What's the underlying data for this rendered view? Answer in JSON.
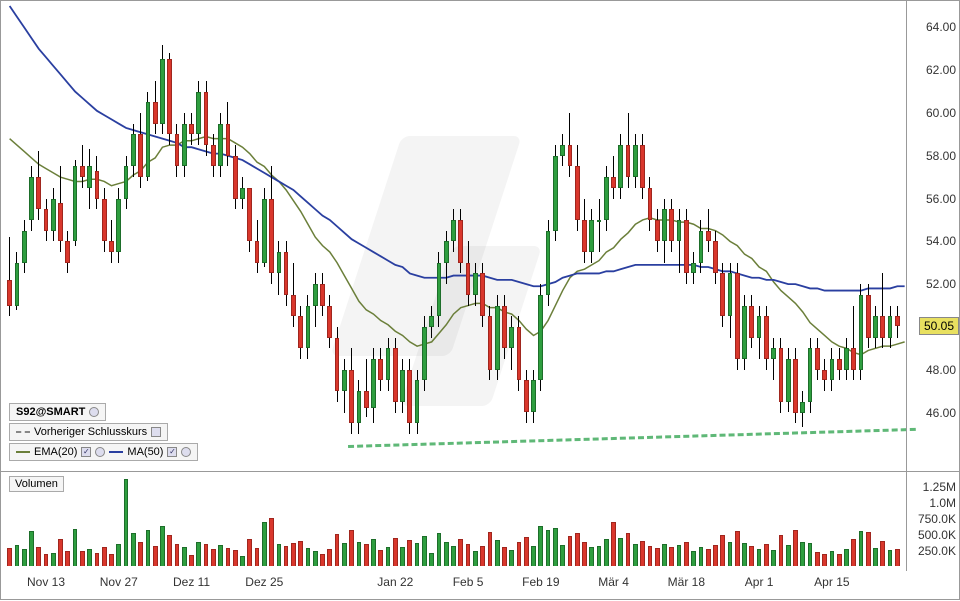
{
  "chart": {
    "type": "candlestick",
    "ticker": "S92@SMART",
    "price_panel": {
      "ylim": [
        43.5,
        65.0
      ],
      "yticks": [
        46,
        48,
        50,
        52,
        54,
        56,
        58,
        60,
        62,
        64
      ],
      "ytick_labels": [
        "46.00",
        "48.00",
        "50.00",
        "52.00",
        "54.00",
        "56.00",
        "58.00",
        "60.00",
        "62.00",
        "64.00"
      ]
    },
    "current_price_label": "50.05",
    "current_price_value": 50.05,
    "volume_panel": {
      "ymax": 1400000,
      "yticks": [
        250000,
        500000,
        750000,
        1000000,
        1250000
      ],
      "ytick_labels": [
        "250.0K",
        "500.0K",
        "750.0K",
        "1.0M",
        "1.25M"
      ]
    },
    "colors": {
      "up_fill": "#2e9e3f",
      "up_border": "#1d6e2a",
      "down_fill": "#d9372c",
      "down_border": "#a0261e",
      "wick": "#000000",
      "ema20": "#6b7f3a",
      "ma50": "#2a3fa0",
      "support": "#5fb877",
      "bg": "#ffffff",
      "axis": "#999999",
      "text": "#333333",
      "price_tag_bg": "#e8e060"
    },
    "legend": {
      "ticker_label": "S92@SMART",
      "prev_close_label": "Vorheriger Schlusskurs",
      "ema_label": "EMA(20)",
      "ma_label": "MA(50)",
      "volume_label": "Volumen"
    },
    "support_line": {
      "x0_idx": 47,
      "y0": 44.5,
      "x1_idx": 125,
      "y1": 45.3
    },
    "xaxis_labels": [
      {
        "idx": 5,
        "text": "Nov 13"
      },
      {
        "idx": 15,
        "text": "Nov 27"
      },
      {
        "idx": 25,
        "text": "Dez 11"
      },
      {
        "idx": 35,
        "text": "Dez 25"
      },
      {
        "idx": 53,
        "text": "Jan 22"
      },
      {
        "idx": 63,
        "text": "Feb 5"
      },
      {
        "idx": 73,
        "text": "Feb 19"
      },
      {
        "idx": 83,
        "text": "Mär 4"
      },
      {
        "idx": 93,
        "text": "Mär 18"
      },
      {
        "idx": 103,
        "text": "Apr 1"
      },
      {
        "idx": 113,
        "text": "Apr 15"
      }
    ],
    "candles": [
      {
        "o": 52.2,
        "h": 54.2,
        "l": 50.5,
        "c": 51.0,
        "v": 280000
      },
      {
        "o": 51.0,
        "h": 53.5,
        "l": 50.8,
        "c": 53.0,
        "v": 320000
      },
      {
        "o": 53.0,
        "h": 55.0,
        "l": 52.5,
        "c": 54.5,
        "v": 260000
      },
      {
        "o": 55.0,
        "h": 57.5,
        "l": 54.5,
        "c": 57.0,
        "v": 550000
      },
      {
        "o": 57.0,
        "h": 58.2,
        "l": 55.0,
        "c": 55.5,
        "v": 300000
      },
      {
        "o": 55.5,
        "h": 56.0,
        "l": 54.0,
        "c": 54.5,
        "v": 180000
      },
      {
        "o": 54.5,
        "h": 56.5,
        "l": 54.0,
        "c": 56.0,
        "v": 200000
      },
      {
        "o": 55.8,
        "h": 57.5,
        "l": 53.5,
        "c": 54.0,
        "v": 420000
      },
      {
        "o": 54.0,
        "h": 54.5,
        "l": 52.5,
        "c": 53.0,
        "v": 230000
      },
      {
        "o": 54.0,
        "h": 57.8,
        "l": 53.8,
        "c": 57.5,
        "v": 580000
      },
      {
        "o": 57.5,
        "h": 58.5,
        "l": 56.5,
        "c": 57.0,
        "v": 240000
      },
      {
        "o": 56.5,
        "h": 58.3,
        "l": 55.5,
        "c": 57.5,
        "v": 260000
      },
      {
        "o": 57.3,
        "h": 58.0,
        "l": 55.5,
        "c": 56.0,
        "v": 210000
      },
      {
        "o": 56.0,
        "h": 56.5,
        "l": 53.5,
        "c": 54.0,
        "v": 290000
      },
      {
        "o": 54.0,
        "h": 55.0,
        "l": 53.0,
        "c": 53.5,
        "v": 180000
      },
      {
        "o": 53.5,
        "h": 56.5,
        "l": 53.0,
        "c": 56.0,
        "v": 340000
      },
      {
        "o": 56.0,
        "h": 58.0,
        "l": 55.5,
        "c": 57.5,
        "v": 1350000
      },
      {
        "o": 57.5,
        "h": 59.5,
        "l": 57.0,
        "c": 59.0,
        "v": 520000
      },
      {
        "o": 59.0,
        "h": 60.0,
        "l": 56.5,
        "c": 57.0,
        "v": 380000
      },
      {
        "o": 57.0,
        "h": 61.0,
        "l": 56.8,
        "c": 60.5,
        "v": 560000
      },
      {
        "o": 60.5,
        "h": 61.5,
        "l": 59.0,
        "c": 59.5,
        "v": 310000
      },
      {
        "o": 59.5,
        "h": 63.2,
        "l": 59.0,
        "c": 62.5,
        "v": 620000
      },
      {
        "o": 62.5,
        "h": 62.8,
        "l": 58.5,
        "c": 59.0,
        "v": 480000
      },
      {
        "o": 59.0,
        "h": 59.5,
        "l": 57.0,
        "c": 57.5,
        "v": 350000
      },
      {
        "o": 57.5,
        "h": 60.0,
        "l": 57.0,
        "c": 59.5,
        "v": 290000
      },
      {
        "o": 59.5,
        "h": 60.0,
        "l": 58.5,
        "c": 59.0,
        "v": 170000
      },
      {
        "o": 59.0,
        "h": 61.5,
        "l": 58.5,
        "c": 61.0,
        "v": 380000
      },
      {
        "o": 61.0,
        "h": 61.5,
        "l": 58.0,
        "c": 58.5,
        "v": 340000
      },
      {
        "o": 58.5,
        "h": 59.0,
        "l": 57.0,
        "c": 57.5,
        "v": 260000
      },
      {
        "o": 57.5,
        "h": 60.0,
        "l": 57.0,
        "c": 59.5,
        "v": 320000
      },
      {
        "o": 59.5,
        "h": 60.5,
        "l": 57.5,
        "c": 58.0,
        "v": 280000
      },
      {
        "o": 58.0,
        "h": 58.5,
        "l": 55.5,
        "c": 56.0,
        "v": 250000
      },
      {
        "o": 56.0,
        "h": 57.0,
        "l": 55.5,
        "c": 56.5,
        "v": 160000
      },
      {
        "o": 56.5,
        "h": 56.5,
        "l": 53.5,
        "c": 54.0,
        "v": 420000
      },
      {
        "o": 54.0,
        "h": 55.0,
        "l": 52.5,
        "c": 53.0,
        "v": 280000
      },
      {
        "o": 53.0,
        "h": 56.5,
        "l": 52.8,
        "c": 56.0,
        "v": 690000
      },
      {
        "o": 56.0,
        "h": 57.5,
        "l": 52.0,
        "c": 52.5,
        "v": 750000
      },
      {
        "o": 52.5,
        "h": 54.0,
        "l": 51.5,
        "c": 53.5,
        "v": 340000
      },
      {
        "o": 53.5,
        "h": 54.0,
        "l": 51.0,
        "c": 51.5,
        "v": 310000
      },
      {
        "o": 51.5,
        "h": 53.0,
        "l": 50.0,
        "c": 50.5,
        "v": 360000
      },
      {
        "o": 50.5,
        "h": 51.0,
        "l": 48.5,
        "c": 49.0,
        "v": 390000
      },
      {
        "o": 49.0,
        "h": 51.5,
        "l": 48.5,
        "c": 51.0,
        "v": 280000
      },
      {
        "o": 51.0,
        "h": 52.5,
        "l": 50.0,
        "c": 52.0,
        "v": 230000
      },
      {
        "o": 52.0,
        "h": 52.5,
        "l": 50.5,
        "c": 51.0,
        "v": 190000
      },
      {
        "o": 51.0,
        "h": 51.5,
        "l": 49.0,
        "c": 49.5,
        "v": 270000
      },
      {
        "o": 49.5,
        "h": 50.0,
        "l": 46.5,
        "c": 47.0,
        "v": 500000
      },
      {
        "o": 47.0,
        "h": 48.5,
        "l": 46.0,
        "c": 48.0,
        "v": 360000
      },
      {
        "o": 48.0,
        "h": 49.0,
        "l": 45.0,
        "c": 45.5,
        "v": 560000
      },
      {
        "o": 45.5,
        "h": 47.5,
        "l": 45.0,
        "c": 47.0,
        "v": 380000
      },
      {
        "o": 47.0,
        "h": 48.5,
        "l": 45.8,
        "c": 46.2,
        "v": 340000
      },
      {
        "o": 46.2,
        "h": 49.0,
        "l": 45.5,
        "c": 48.5,
        "v": 420000
      },
      {
        "o": 48.5,
        "h": 49.0,
        "l": 47.0,
        "c": 47.5,
        "v": 250000
      },
      {
        "o": 47.5,
        "h": 49.5,
        "l": 47.0,
        "c": 49.0,
        "v": 300000
      },
      {
        "o": 49.0,
        "h": 49.5,
        "l": 46.0,
        "c": 46.5,
        "v": 430000
      },
      {
        "o": 46.5,
        "h": 48.5,
        "l": 46.0,
        "c": 48.0,
        "v": 290000
      },
      {
        "o": 48.0,
        "h": 48.5,
        "l": 45.0,
        "c": 45.5,
        "v": 410000
      },
      {
        "o": 45.5,
        "h": 48.0,
        "l": 45.0,
        "c": 47.5,
        "v": 360000
      },
      {
        "o": 47.5,
        "h": 50.5,
        "l": 47.0,
        "c": 50.0,
        "v": 460000
      },
      {
        "o": 50.0,
        "h": 51.0,
        "l": 49.5,
        "c": 50.5,
        "v": 210000
      },
      {
        "o": 50.5,
        "h": 53.5,
        "l": 50.0,
        "c": 53.0,
        "v": 520000
      },
      {
        "o": 53.0,
        "h": 54.5,
        "l": 52.0,
        "c": 54.0,
        "v": 380000
      },
      {
        "o": 54.0,
        "h": 55.5,
        "l": 53.5,
        "c": 55.0,
        "v": 310000
      },
      {
        "o": 55.0,
        "h": 55.5,
        "l": 52.5,
        "c": 53.0,
        "v": 420000
      },
      {
        "o": 53.0,
        "h": 54.0,
        "l": 51.0,
        "c": 51.5,
        "v": 350000
      },
      {
        "o": 51.5,
        "h": 53.0,
        "l": 51.0,
        "c": 52.5,
        "v": 240000
      },
      {
        "o": 52.5,
        "h": 53.0,
        "l": 50.0,
        "c": 50.5,
        "v": 310000
      },
      {
        "o": 50.5,
        "h": 51.0,
        "l": 47.5,
        "c": 48.0,
        "v": 530000
      },
      {
        "o": 48.0,
        "h": 51.5,
        "l": 47.5,
        "c": 51.0,
        "v": 400000
      },
      {
        "o": 51.0,
        "h": 51.5,
        "l": 48.5,
        "c": 49.0,
        "v": 290000
      },
      {
        "o": 49.0,
        "h": 50.5,
        "l": 48.0,
        "c": 50.0,
        "v": 250000
      },
      {
        "o": 50.0,
        "h": 50.5,
        "l": 47.0,
        "c": 47.5,
        "v": 380000
      },
      {
        "o": 47.5,
        "h": 48.0,
        "l": 45.5,
        "c": 46.0,
        "v": 450000
      },
      {
        "o": 46.0,
        "h": 48.0,
        "l": 45.5,
        "c": 47.5,
        "v": 310000
      },
      {
        "o": 47.5,
        "h": 52.0,
        "l": 47.0,
        "c": 51.5,
        "v": 620000
      },
      {
        "o": 51.5,
        "h": 55.0,
        "l": 51.0,
        "c": 54.5,
        "v": 560000
      },
      {
        "o": 54.5,
        "h": 58.5,
        "l": 54.0,
        "c": 58.0,
        "v": 590000
      },
      {
        "o": 58.0,
        "h": 59.0,
        "l": 57.5,
        "c": 58.5,
        "v": 320000
      },
      {
        "o": 58.5,
        "h": 60.0,
        "l": 57.0,
        "c": 57.5,
        "v": 460000
      },
      {
        "o": 57.5,
        "h": 58.5,
        "l": 54.5,
        "c": 55.0,
        "v": 510000
      },
      {
        "o": 55.0,
        "h": 56.0,
        "l": 53.0,
        "c": 53.5,
        "v": 380000
      },
      {
        "o": 53.5,
        "h": 55.5,
        "l": 53.0,
        "c": 55.0,
        "v": 290000
      },
      {
        "o": 55.0,
        "h": 56.0,
        "l": 53.5,
        "c": 55.0,
        "v": 310000
      },
      {
        "o": 55.0,
        "h": 57.5,
        "l": 54.5,
        "c": 57.0,
        "v": 420000
      },
      {
        "o": 57.0,
        "h": 58.0,
        "l": 56.0,
        "c": 56.5,
        "v": 680000
      },
      {
        "o": 56.5,
        "h": 59.0,
        "l": 56.0,
        "c": 58.5,
        "v": 440000
      },
      {
        "o": 58.5,
        "h": 60.0,
        "l": 56.5,
        "c": 57.0,
        "v": 520000
      },
      {
        "o": 57.0,
        "h": 59.0,
        "l": 56.5,
        "c": 58.5,
        "v": 350000
      },
      {
        "o": 58.5,
        "h": 59.0,
        "l": 56.0,
        "c": 56.5,
        "v": 390000
      },
      {
        "o": 56.5,
        "h": 57.0,
        "l": 54.5,
        "c": 55.0,
        "v": 310000
      },
      {
        "o": 55.0,
        "h": 55.5,
        "l": 53.5,
        "c": 54.0,
        "v": 280000
      },
      {
        "o": 54.0,
        "h": 56.0,
        "l": 53.0,
        "c": 55.5,
        "v": 350000
      },
      {
        "o": 55.5,
        "h": 56.0,
        "l": 53.5,
        "c": 54.0,
        "v": 290000
      },
      {
        "o": 54.0,
        "h": 55.5,
        "l": 52.5,
        "c": 55.0,
        "v": 320000
      },
      {
        "o": 55.0,
        "h": 55.5,
        "l": 52.0,
        "c": 52.5,
        "v": 380000
      },
      {
        "o": 52.5,
        "h": 53.5,
        "l": 52.0,
        "c": 53.0,
        "v": 230000
      },
      {
        "o": 53.0,
        "h": 55.0,
        "l": 52.5,
        "c": 54.5,
        "v": 300000
      },
      {
        "o": 54.5,
        "h": 55.5,
        "l": 53.5,
        "c": 54.0,
        "v": 260000
      },
      {
        "o": 54.0,
        "h": 54.5,
        "l": 52.0,
        "c": 52.5,
        "v": 330000
      },
      {
        "o": 52.5,
        "h": 53.0,
        "l": 50.0,
        "c": 50.5,
        "v": 480000
      },
      {
        "o": 50.5,
        "h": 53.0,
        "l": 49.5,
        "c": 52.5,
        "v": 380000
      },
      {
        "o": 52.5,
        "h": 53.0,
        "l": 48.0,
        "c": 48.5,
        "v": 540000
      },
      {
        "o": 48.5,
        "h": 51.5,
        "l": 48.0,
        "c": 51.0,
        "v": 360000
      },
      {
        "o": 51.0,
        "h": 51.5,
        "l": 49.0,
        "c": 49.5,
        "v": 310000
      },
      {
        "o": 49.5,
        "h": 51.0,
        "l": 48.5,
        "c": 50.5,
        "v": 270000
      },
      {
        "o": 50.5,
        "h": 51.0,
        "l": 48.0,
        "c": 48.5,
        "v": 340000
      },
      {
        "o": 48.5,
        "h": 49.5,
        "l": 47.5,
        "c": 49.0,
        "v": 250000
      },
      {
        "o": 49.0,
        "h": 49.5,
        "l": 46.0,
        "c": 46.5,
        "v": 490000
      },
      {
        "o": 46.5,
        "h": 49.0,
        "l": 46.0,
        "c": 48.5,
        "v": 320000
      },
      {
        "o": 48.5,
        "h": 49.0,
        "l": 45.5,
        "c": 46.0,
        "v": 560000
      },
      {
        "o": 46.0,
        "h": 47.0,
        "l": 45.3,
        "c": 46.5,
        "v": 380000
      },
      {
        "o": 46.5,
        "h": 49.5,
        "l": 46.0,
        "c": 49.0,
        "v": 360000
      },
      {
        "o": 49.0,
        "h": 49.5,
        "l": 47.5,
        "c": 48.0,
        "v": 220000
      },
      {
        "o": 48.0,
        "h": 48.5,
        "l": 47.0,
        "c": 47.5,
        "v": 190000
      },
      {
        "o": 47.5,
        "h": 49.0,
        "l": 47.0,
        "c": 48.5,
        "v": 240000
      },
      {
        "o": 48.5,
        "h": 49.0,
        "l": 47.5,
        "c": 48.0,
        "v": 180000
      },
      {
        "o": 48.0,
        "h": 49.5,
        "l": 47.5,
        "c": 49.0,
        "v": 260000
      },
      {
        "o": 49.0,
        "h": 51.0,
        "l": 47.5,
        "c": 48.0,
        "v": 420000
      },
      {
        "o": 48.0,
        "h": 52.0,
        "l": 47.5,
        "c": 51.5,
        "v": 540000
      },
      {
        "o": 51.5,
        "h": 52.0,
        "l": 49.0,
        "c": 49.5,
        "v": 530000
      },
      {
        "o": 49.5,
        "h": 51.0,
        "l": 49.0,
        "c": 50.5,
        "v": 280000
      },
      {
        "o": 50.5,
        "h": 52.5,
        "l": 49.0,
        "c": 49.5,
        "v": 390000
      },
      {
        "o": 49.5,
        "h": 51.0,
        "l": 49.0,
        "c": 50.5,
        "v": 250000
      },
      {
        "o": 50.5,
        "h": 51.0,
        "l": 49.5,
        "c": 50.05,
        "v": 270000
      }
    ],
    "ema20": [
      58.8,
      58.5,
      58.2,
      57.9,
      57.6,
      57.4,
      57.2,
      57.0,
      56.9,
      56.8,
      56.8,
      56.9,
      56.9,
      56.8,
      56.6,
      56.7,
      56.8,
      57.1,
      57.3,
      57.7,
      57.9,
      58.4,
      58.5,
      58.5,
      58.7,
      58.7,
      58.8,
      58.9,
      58.8,
      58.8,
      58.8,
      58.6,
      58.4,
      58.1,
      57.7,
      57.5,
      57.1,
      56.8,
      56.4,
      55.9,
      55.4,
      54.8,
      54.2,
      53.8,
      53.5,
      53.0,
      52.4,
      51.8,
      51.2,
      50.8,
      50.6,
      50.3,
      50.1,
      49.8,
      49.6,
      49.3,
      49.1,
      49.2,
      49.3,
      49.7,
      50.1,
      50.6,
      50.9,
      51.0,
      51.1,
      51.1,
      50.9,
      50.9,
      50.7,
      50.6,
      50.3,
      49.9,
      49.6,
      49.8,
      50.3,
      51.0,
      51.7,
      52.3,
      52.6,
      52.7,
      52.9,
      53.1,
      53.5,
      53.7,
      54.1,
      54.4,
      54.8,
      55.0,
      55.1,
      55.0,
      55.0,
      55.0,
      54.9,
      54.9,
      54.8,
      54.6,
      54.6,
      54.5,
      54.3,
      54.0,
      53.8,
      53.4,
      53.2,
      52.8,
      52.6,
      52.1,
      51.7,
      51.4,
      51.1,
      50.7,
      50.2,
      49.9,
      49.6,
      49.3,
      49.1,
      49.0,
      48.8,
      48.7,
      48.9,
      49.0,
      49.1,
      49.1,
      49.2,
      49.3
    ],
    "ma50": [
      65.0,
      64.5,
      64.0,
      63.5,
      63.0,
      62.6,
      62.2,
      61.8,
      61.4,
      61.0,
      60.7,
      60.4,
      60.1,
      59.9,
      59.7,
      59.5,
      59.3,
      59.2,
      59.1,
      59.0,
      58.9,
      58.8,
      58.7,
      58.6,
      58.4,
      58.4,
      58.3,
      58.2,
      58.1,
      58.1,
      58.0,
      57.9,
      57.8,
      57.6,
      57.4,
      57.2,
      57.0,
      56.8,
      56.6,
      56.4,
      56.1,
      55.8,
      55.5,
      55.2,
      55.0,
      54.7,
      54.4,
      54.1,
      53.9,
      53.7,
      53.5,
      53.3,
      53.1,
      52.9,
      52.8,
      52.5,
      52.4,
      52.3,
      52.3,
      52.3,
      52.3,
      52.4,
      52.4,
      52.4,
      52.4,
      52.4,
      52.3,
      52.2,
      52.2,
      52.2,
      52.1,
      52.0,
      51.9,
      51.9,
      52.0,
      52.1,
      52.3,
      52.4,
      52.5,
      52.5,
      52.5,
      52.5,
      52.6,
      52.6,
      52.7,
      52.8,
      52.9,
      52.9,
      52.9,
      52.9,
      52.9,
      52.9,
      52.9,
      52.9,
      52.9,
      52.8,
      52.8,
      52.7,
      52.6,
      52.6,
      52.5,
      52.4,
      52.3,
      52.3,
      52.2,
      52.2,
      52.1,
      52.0,
      52.0,
      51.9,
      51.8,
      51.8,
      51.7,
      51.7,
      51.7,
      51.7,
      51.7,
      51.7,
      51.8,
      51.8,
      51.8,
      51.8,
      51.9,
      51.9
    ]
  }
}
